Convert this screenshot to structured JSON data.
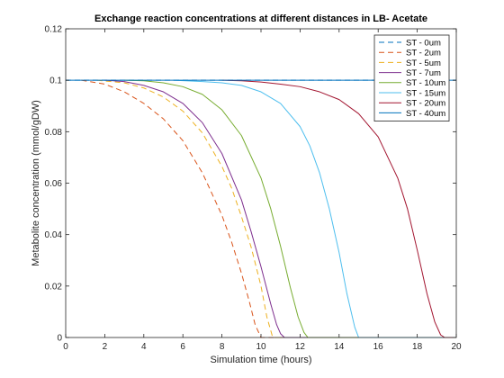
{
  "chart_data": {
    "type": "line",
    "title": "Exchange reaction concentrations at different distances in LB- Acetate",
    "xlabel": "Simulation time (hours)",
    "ylabel": "Metabolite concentration (mmol/gDW)",
    "xlim": [
      0,
      20
    ],
    "ylim": [
      0,
      0.12
    ],
    "xticks": [
      0,
      2,
      4,
      6,
      8,
      10,
      12,
      14,
      16,
      18,
      20
    ],
    "yticks": [
      0,
      0.02,
      0.04,
      0.06,
      0.08,
      0.1,
      0.12
    ],
    "xtick_labels": [
      "0",
      "2",
      "4",
      "6",
      "8",
      "10",
      "12",
      "14",
      "16",
      "18",
      "20"
    ],
    "ytick_labels": [
      "0",
      "0.02",
      "0.04",
      "0.06",
      "0.08",
      "0.1",
      "0.12"
    ],
    "grid": false,
    "legend_position": "top-right",
    "series": [
      {
        "name": "ST - 0um",
        "color": "#0072BD",
        "dashed": true,
        "x": [
          0,
          20
        ],
        "y": [
          0.1,
          0.1
        ]
      },
      {
        "name": "ST - 2um",
        "color": "#D95319",
        "dashed": true,
        "x": [
          0.8,
          2,
          3,
          4,
          5,
          6,
          7,
          8,
          8.5,
          9,
          9.4,
          9.7,
          10,
          20
        ],
        "y": [
          0.1,
          0.0985,
          0.0955,
          0.091,
          0.085,
          0.0765,
          0.064,
          0.0475,
          0.037,
          0.025,
          0.014,
          0.005,
          0,
          0
        ]
      },
      {
        "name": "ST - 5um",
        "color": "#EDB120",
        "dashed": true,
        "x": [
          1.6,
          3,
          4,
          5,
          6,
          7,
          8,
          8.5,
          9,
          9.5,
          10,
          10.3,
          10.6,
          20
        ],
        "y": [
          0.1,
          0.099,
          0.097,
          0.0935,
          0.088,
          0.0795,
          0.0665,
          0.058,
          0.047,
          0.035,
          0.02,
          0.008,
          0,
          0
        ]
      },
      {
        "name": "ST - 7um",
        "color": "#7E2F8E",
        "dashed": false,
        "x": [
          2,
          3,
          4,
          5,
          6,
          7,
          8,
          9,
          9.5,
          10,
          10.5,
          10.8,
          11,
          11.2,
          20
        ],
        "y": [
          0.1,
          0.0995,
          0.098,
          0.0955,
          0.091,
          0.0835,
          0.0715,
          0.0535,
          0.041,
          0.0275,
          0.013,
          0.005,
          0.0015,
          0,
          0
        ]
      },
      {
        "name": "ST - 10um",
        "color": "#77AC30",
        "dashed": false,
        "x": [
          3,
          4,
          5,
          6,
          7,
          8,
          9,
          10,
          10.5,
          11,
          11.5,
          11.9,
          12.2,
          12.4,
          20
        ],
        "y": [
          0.1,
          0.0998,
          0.099,
          0.0975,
          0.0945,
          0.0885,
          0.0785,
          0.062,
          0.05,
          0.0355,
          0.0195,
          0.008,
          0.002,
          0,
          0
        ]
      },
      {
        "name": "ST - 15um",
        "color": "#4DBEEE",
        "dashed": false,
        "x": [
          5.5,
          7,
          8,
          9,
          10,
          11,
          12,
          12.5,
          13,
          13.5,
          14,
          14.4,
          14.8,
          15,
          20
        ],
        "y": [
          0.1,
          0.0995,
          0.099,
          0.098,
          0.0955,
          0.091,
          0.082,
          0.0745,
          0.064,
          0.05,
          0.033,
          0.017,
          0.004,
          0,
          0
        ]
      },
      {
        "name": "ST - 20um",
        "color": "#A2142F",
        "dashed": false,
        "x": [
          8,
          9,
          10,
          11,
          12,
          13,
          14,
          15,
          16,
          17,
          17.5,
          18,
          18.5,
          18.9,
          19.2,
          19.4,
          20
        ],
        "y": [
          0.1,
          0.0998,
          0.0993,
          0.0985,
          0.0975,
          0.0955,
          0.0925,
          0.087,
          0.078,
          0.062,
          0.05,
          0.034,
          0.017,
          0.006,
          0.001,
          0,
          0
        ]
      },
      {
        "name": "ST - 40um",
        "color": "#0072BD",
        "dashed": false,
        "x": [
          0,
          20
        ],
        "y": [
          0.1,
          0.1
        ]
      }
    ]
  }
}
